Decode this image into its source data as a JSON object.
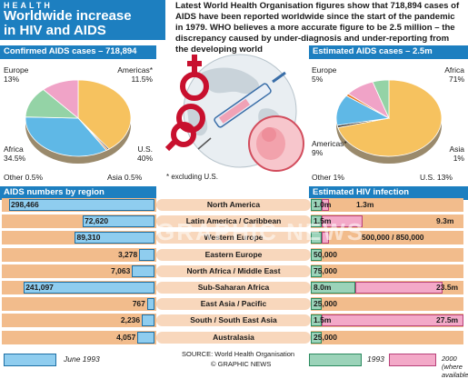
{
  "header": {
    "kicker": "HEALTH",
    "title_line1": "Worldwide increase",
    "title_line2": "in HIV and AIDS"
  },
  "intro": "Latest World Health Organisation figures show that 718,894 cases of AIDS have been reported worldwide since the start of the pandemic in 1979. WHO believes a more accurate figure to be 2.5 million – the discrepancy caused by under-diagnosis and under-reporting from the developing world",
  "confirmed_header": "Confirmed AIDS cases – 718,894",
  "estimated_header": "Estimated AIDS cases – 2.5m",
  "footnote": "* excluding U.S.",
  "aids_numbers_header": "AIDS numbers by region",
  "hiv_header": "Estimated HIV infection",
  "watermark": "GRAPHIC NEWS",
  "confirmed_labels": [
    {
      "name": "Europe",
      "pct": "13%"
    },
    {
      "name": "Americas*",
      "pct": "11.5%"
    },
    {
      "name": "Africa",
      "pct": "34.5%"
    },
    {
      "name": "U.S.",
      "pct": "40%"
    },
    {
      "name": "Other",
      "pct": "0.5%"
    },
    {
      "name": "Asia",
      "pct": "0.5%"
    }
  ],
  "estimated_labels": [
    {
      "name": "Europe",
      "pct": "5%"
    },
    {
      "name": "Africa",
      "pct": "71%"
    },
    {
      "name": "Americas*",
      "pct": "9%"
    },
    {
      "name": "Asia",
      "pct": "1%"
    },
    {
      "name": "Other",
      "pct": "1%"
    },
    {
      "name": "U.S.",
      "pct": "13%"
    }
  ],
  "regions": [
    {
      "name": "North America",
      "aids": "298,466",
      "hiv1993": "1.0m",
      "hiv2000": "1.3m"
    },
    {
      "name": "Latin America / Caribbean",
      "aids": "72,620",
      "hiv1993": "1.5m",
      "hiv2000": "9.3m"
    },
    {
      "name": "Western Europe",
      "aids": "89,310",
      "hiv1993": "",
      "hiv2000": "500,000 / 850,000"
    },
    {
      "name": "Eastern Europe",
      "aids": "3,278",
      "hiv1993": "50,000",
      "hiv2000": ""
    },
    {
      "name": "North Africa / Middle East",
      "aids": "7,063",
      "hiv1993": "75,000",
      "hiv2000": ""
    },
    {
      "name": "Sub-Saharan Africa",
      "aids": "241,097",
      "hiv1993": "8.0m",
      "hiv2000": "23.5m"
    },
    {
      "name": "East Asia / Pacific",
      "aids": "767",
      "hiv1993": "25,000",
      "hiv2000": ""
    },
    {
      "name": "South / South East Asia",
      "aids": "2,236",
      "hiv1993": "1.5m",
      "hiv2000": "27.5m"
    },
    {
      "name": "Australasia",
      "aids": "4,057",
      "hiv1993": "25,000",
      "hiv2000": ""
    }
  ],
  "legend": {
    "june1993": "June 1993",
    "y1993": "1993",
    "y2000": "2000 (where available)"
  },
  "source": "SOURCE: World Health Organisation",
  "credit": "© GRAPHIC NEWS",
  "chart_data": [
    {
      "type": "pie",
      "title": "Confirmed AIDS cases – 718,894",
      "categories": [
        "U.S.",
        "Asia",
        "Other",
        "Africa",
        "Europe",
        "Americas*"
      ],
      "values": [
        40,
        0.5,
        0.5,
        34.5,
        13,
        11.5
      ],
      "colors": [
        "#f6c25f",
        "#3a3a3a",
        "#e87a2a",
        "#5fb8e6",
        "#94d3a6",
        "#f0a3c7"
      ]
    },
    {
      "type": "pie",
      "title": "Estimated AIDS cases – 2.5m",
      "categories": [
        "Africa",
        "Asia",
        "U.S.",
        "Other",
        "Americas*",
        "Europe"
      ],
      "values": [
        71,
        1,
        13,
        1,
        9,
        5
      ],
      "colors": [
        "#f6c25f",
        "#3a3a3a",
        "#5fb8e6",
        "#e87a2a",
        "#f0a3c7",
        "#94d3a6"
      ]
    },
    {
      "type": "bar",
      "title": "AIDS numbers by region",
      "categories": [
        "North America",
        "Latin America / Caribbean",
        "Western Europe",
        "Eastern Europe",
        "North Africa / Middle East",
        "Sub-Saharan Africa",
        "East Asia / Pacific",
        "South / South East Asia",
        "Australasia"
      ],
      "series": [
        {
          "name": "June 1993",
          "values": [
            298466,
            72620,
            89310,
            3278,
            7063,
            241097,
            767,
            2236,
            4057
          ]
        }
      ]
    },
    {
      "type": "bar",
      "title": "Estimated HIV infection",
      "categories": [
        "North America",
        "Latin America / Caribbean",
        "Western Europe",
        "Eastern Europe",
        "North Africa / Middle East",
        "Sub-Saharan Africa",
        "East Asia / Pacific",
        "South / South East Asia",
        "Australasia"
      ],
      "series": [
        {
          "name": "1993",
          "values": [
            1000000,
            1500000,
            500000,
            50000,
            75000,
            8000000,
            25000,
            1500000,
            25000
          ]
        },
        {
          "name": "2000 (where available)",
          "values": [
            1300000,
            9300000,
            850000,
            null,
            null,
            23500000,
            null,
            27500000,
            null
          ]
        }
      ]
    }
  ]
}
